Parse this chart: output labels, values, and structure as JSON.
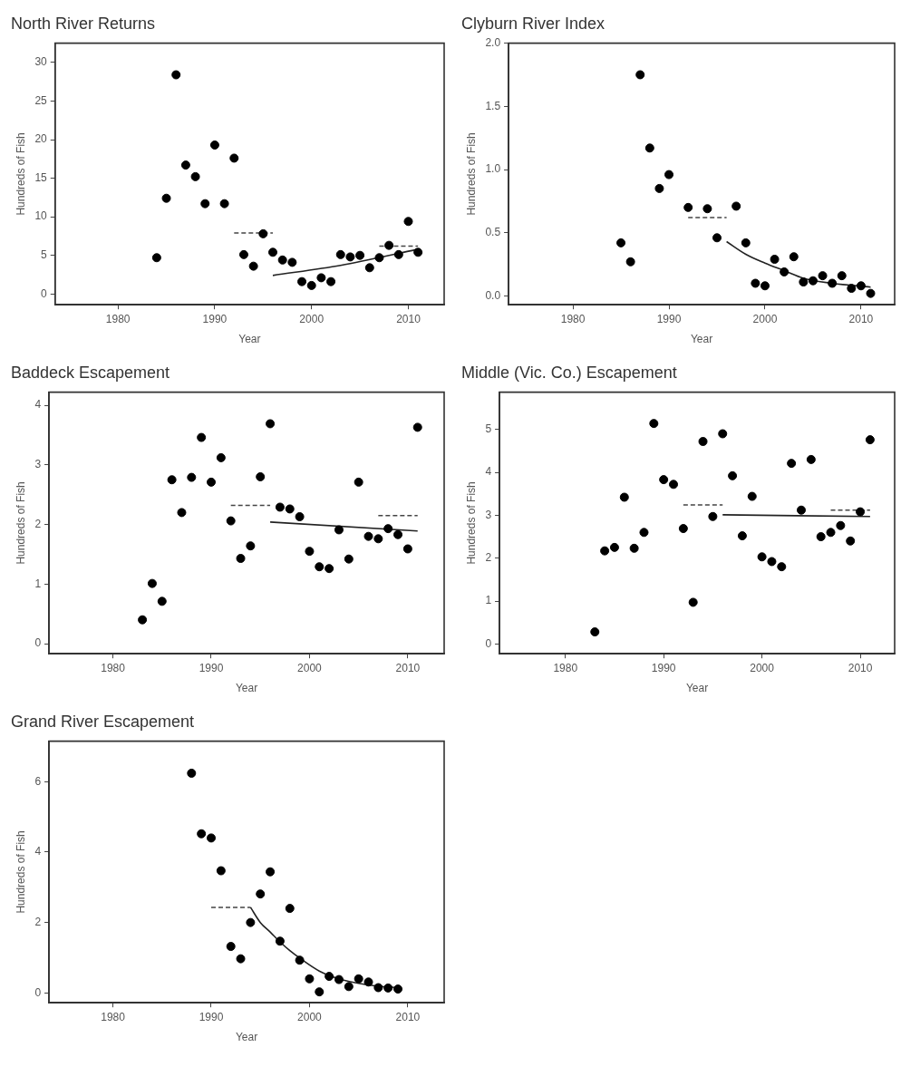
{
  "chart_data": [
    {
      "type": "scatter",
      "title": "North River Returns",
      "xlabel": "Year",
      "ylabel": "Hundreds of Fish",
      "xlim": [
        1973.5,
        2013.7
      ],
      "xticks": [
        1980,
        1990,
        2000,
        2010
      ],
      "ylim": [
        -1.4,
        32.5
      ],
      "yticks": [
        0,
        5,
        10,
        15,
        20,
        25,
        30
      ],
      "grid": false,
      "marker": "circle",
      "series": [
        {
          "type": "scatter",
          "color": "#000000",
          "x": [
            1984,
            1985,
            1986,
            1987,
            1988,
            1989,
            1990,
            1991,
            1992,
            1993,
            1994,
            1995,
            1996,
            1997,
            1998,
            1999,
            2000,
            2001,
            2002,
            2003,
            2004,
            2005,
            2006,
            2007,
            2008,
            2009,
            2010,
            2011
          ],
          "values": [
            4.7,
            12.4,
            28.4,
            16.7,
            15.2,
            11.7,
            19.3,
            11.7,
            17.6,
            5.1,
            3.6,
            7.8,
            5.4,
            4.4,
            4.1,
            1.6,
            1.1,
            2.1,
            1.6,
            5.1,
            4.8,
            5.0,
            3.4,
            4.7,
            6.3,
            5.1,
            9.4,
            5.4
          ]
        },
        {
          "type": "line",
          "color": "#222222",
          "marker": "none",
          "line_style": "solid",
          "x": [
            1996,
            2003,
            2011
          ],
          "values": [
            2.4,
            3.7,
            5.8
          ]
        },
        {
          "type": "line",
          "color": "#444444",
          "marker": "none",
          "line_style": "dashed",
          "x": [
            1992,
            1996
          ],
          "values": [
            7.9,
            7.9
          ]
        },
        {
          "type": "line",
          "color": "#444444",
          "marker": "none",
          "line_style": "dashed",
          "x": [
            2007,
            2011
          ],
          "values": [
            6.2,
            6.2
          ]
        }
      ]
    },
    {
      "type": "scatter",
      "title": "Clyburn River Index",
      "xlabel": "Year",
      "ylabel": "Hundreds of Fish",
      "xlim": [
        1973.3,
        2013.5
      ],
      "xticks": [
        1980,
        1990,
        2000,
        2010
      ],
      "ylim": [
        -0.07,
        2.0
      ],
      "yticks": [
        {
          "value": 0,
          "label": "0.0"
        },
        0.5,
        {
          "value": 1,
          "label": "1.0"
        },
        1.5,
        {
          "value": 2,
          "label": "2.0"
        }
      ],
      "grid": false,
      "marker": "circle",
      "series": [
        {
          "type": "scatter",
          "color": "#000000",
          "x": [
            1985,
            1986,
            1987,
            1988,
            1989,
            1990,
            1992,
            1994,
            1995,
            1997,
            1998,
            1999,
            2000,
            2001,
            2002,
            2003,
            2004,
            2005,
            2006,
            2007,
            2008,
            2009,
            2010,
            2011
          ],
          "values": [
            0.42,
            0.27,
            1.75,
            1.17,
            0.85,
            0.96,
            0.7,
            0.69,
            0.46,
            0.71,
            0.42,
            0.1,
            0.08,
            0.29,
            0.19,
            0.31,
            0.11,
            0.12,
            0.16,
            0.1,
            0.16,
            0.06,
            0.08,
            0.02
          ]
        },
        {
          "type": "line",
          "color": "#222222",
          "marker": "none",
          "line_style": "solid",
          "x": [
            1996,
            1998,
            2000,
            2002,
            2004,
            2007,
            2011
          ],
          "values": [
            0.43,
            0.33,
            0.26,
            0.2,
            0.14,
            0.1,
            0.07
          ]
        },
        {
          "type": "line",
          "color": "#444444",
          "marker": "none",
          "line_style": "dashed",
          "x": [
            1992,
            1996
          ],
          "values": [
            0.62,
            0.62
          ]
        }
      ]
    },
    {
      "type": "scatter",
      "title": "Baddeck Escapement",
      "xlabel": "Year",
      "ylabel": "Hundreds of Fish",
      "xlim": [
        1973.5,
        2013.7
      ],
      "xticks": [
        1980,
        1990,
        2000,
        2010
      ],
      "ylim": [
        -0.17,
        4.22
      ],
      "yticks": [
        0,
        1,
        2,
        3,
        4
      ],
      "grid": false,
      "marker": "circle",
      "series": [
        {
          "type": "scatter",
          "color": "#000000",
          "x": [
            1983,
            1984,
            1985,
            1986,
            1987,
            1988,
            1989,
            1990,
            1991,
            1992,
            1993,
            1994,
            1995,
            1996,
            1997,
            1998,
            1999,
            2000,
            2001,
            2002,
            2003,
            2004,
            2005,
            2006,
            2007,
            2008,
            2009,
            2010,
            2011
          ],
          "values": [
            0.4,
            1.01,
            0.71,
            2.75,
            2.2,
            2.79,
            3.46,
            2.71,
            3.12,
            2.06,
            1.43,
            1.64,
            2.8,
            3.69,
            2.29,
            2.26,
            2.13,
            1.55,
            1.29,
            1.26,
            1.91,
            1.42,
            2.71,
            1.8,
            1.76,
            1.93,
            1.83,
            1.59,
            3.63
          ]
        },
        {
          "type": "line",
          "color": "#222222",
          "marker": "none",
          "line_style": "solid",
          "x": [
            1996,
            2011
          ],
          "values": [
            2.04,
            1.89
          ]
        },
        {
          "type": "line",
          "color": "#444444",
          "marker": "none",
          "line_style": "dashed",
          "x": [
            1992,
            1996
          ],
          "values": [
            2.32,
            2.32
          ]
        },
        {
          "type": "line",
          "color": "#444444",
          "marker": "none",
          "line_style": "dashed",
          "x": [
            2007,
            2011
          ],
          "values": [
            2.15,
            2.15
          ]
        }
      ]
    },
    {
      "type": "scatter",
      "title": "Middle (Vic. Co.) Escapement",
      "xlabel": "Year",
      "ylabel": "Hundreds of Fish",
      "xlim": [
        1973.3,
        2013.5
      ],
      "xticks": [
        1980,
        1990,
        2000,
        2010
      ],
      "ylim": [
        -0.23,
        5.87
      ],
      "yticks": [
        0,
        1,
        2,
        3,
        4,
        5
      ],
      "grid": false,
      "marker": "circle",
      "series": [
        {
          "type": "scatter",
          "color": "#000000",
          "x": [
            1983,
            1984,
            1985,
            1986,
            1987,
            1988,
            1989,
            1990,
            1991,
            1992,
            1993,
            1994,
            1995,
            1996,
            1997,
            1998,
            1999,
            2000,
            2001,
            2002,
            2003,
            2004,
            2005,
            2006,
            2007,
            2008,
            2009,
            2010,
            2011
          ],
          "values": [
            0.28,
            2.17,
            2.25,
            3.42,
            2.23,
            2.6,
            5.14,
            3.83,
            3.72,
            2.69,
            0.97,
            4.72,
            2.97,
            4.9,
            3.92,
            2.52,
            3.44,
            2.03,
            1.92,
            1.8,
            4.21,
            3.12,
            4.3,
            2.5,
            2.6,
            2.76,
            2.4,
            3.08,
            4.76
          ]
        },
        {
          "type": "line",
          "color": "#222222",
          "marker": "none",
          "line_style": "solid",
          "x": [
            1996,
            2011
          ],
          "values": [
            3.01,
            2.97
          ]
        },
        {
          "type": "line",
          "color": "#444444",
          "marker": "none",
          "line_style": "dashed",
          "x": [
            1992,
            1996
          ],
          "values": [
            3.24,
            3.24
          ]
        },
        {
          "type": "line",
          "color": "#444444",
          "marker": "none",
          "line_style": "dashed",
          "x": [
            2007,
            2011
          ],
          "values": [
            3.12,
            3.12
          ]
        }
      ]
    },
    {
      "type": "scatter",
      "title": "Grand River Escapement",
      "xlabel": "Year",
      "ylabel": "Hundreds of Fish",
      "xlim": [
        1973.5,
        2013.7
      ],
      "xticks": [
        1980,
        1990,
        2000,
        2010
      ],
      "ylim": [
        -0.28,
        7.15
      ],
      "yticks": [
        0,
        2,
        4,
        6
      ],
      "grid": false,
      "marker": "circle",
      "series": [
        {
          "type": "scatter",
          "color": "#000000",
          "x": [
            1988,
            1989,
            1990,
            1991,
            1992,
            1993,
            1994,
            1995,
            1996,
            1997,
            1998,
            1999,
            2000,
            2001,
            2002,
            2003,
            2004,
            2005,
            2006,
            2007,
            2008,
            2009
          ],
          "values": [
            6.24,
            4.52,
            4.4,
            3.47,
            1.32,
            0.97,
            2.0,
            2.81,
            3.44,
            1.47,
            2.4,
            0.93,
            0.4,
            0.03,
            0.47,
            0.38,
            0.18,
            0.4,
            0.31,
            0.15,
            0.14,
            0.11
          ]
        },
        {
          "type": "line",
          "color": "#222222",
          "marker": "none",
          "line_style": "solid",
          "x": [
            1994,
            1995,
            1996,
            1997,
            1998,
            1999,
            2001,
            2003,
            2005,
            2007,
            2009
          ],
          "values": [
            2.43,
            2.0,
            1.73,
            1.45,
            1.2,
            0.99,
            0.62,
            0.4,
            0.27,
            0.19,
            0.15
          ]
        },
        {
          "type": "line",
          "color": "#444444",
          "marker": "none",
          "line_style": "dashed",
          "x": [
            1990,
            1994
          ],
          "values": [
            2.43,
            2.43
          ]
        }
      ]
    }
  ]
}
